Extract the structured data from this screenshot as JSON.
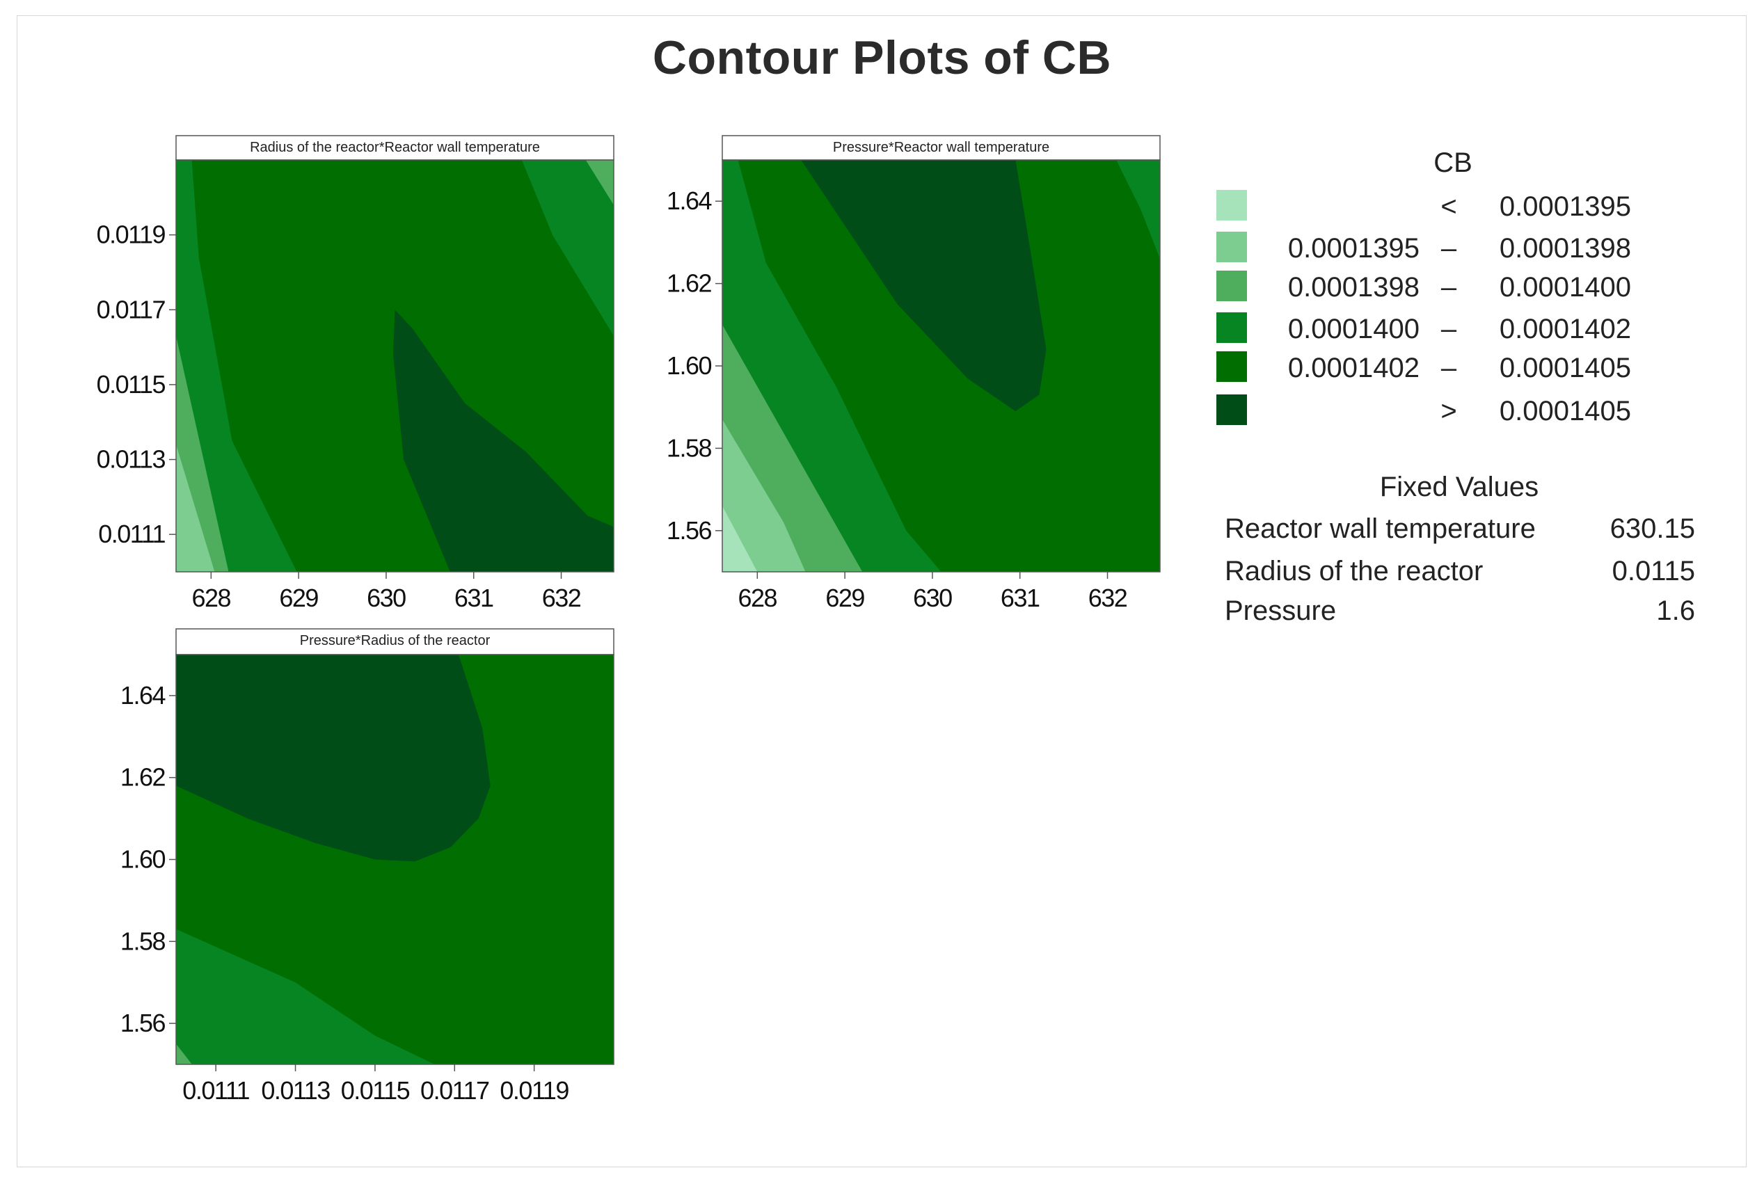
{
  "title": "Contour Plots of CB",
  "legend": {
    "title": "CB",
    "bins": [
      {
        "low": "",
        "op": "<",
        "high": "0.0001395",
        "color": "#a6e3bb"
      },
      {
        "low": "0.0001395",
        "op": "–",
        "high": "0.0001398",
        "color": "#7dcd90"
      },
      {
        "low": "0.0001398",
        "op": "–",
        "high": "0.0001400",
        "color": "#4fae5e"
      },
      {
        "low": "0.0001400",
        "op": "–",
        "high": "0.0001402",
        "color": "#078522"
      },
      {
        "low": "0.0001402",
        "op": "–",
        "high": "0.0001405",
        "color": "#006e00"
      },
      {
        "low": "",
        "op": ">",
        "high": "0.0001405",
        "color": "#004d18"
      }
    ]
  },
  "fixed_values": {
    "title": "Fixed Values",
    "rows": [
      {
        "name": "Reactor wall temperature",
        "value": "630.15"
      },
      {
        "name": "Radius of the reactor",
        "value": "0.0115"
      },
      {
        "name": "Pressure",
        "value": "1.6"
      }
    ]
  },
  "chart_data": [
    {
      "type": "heatmap",
      "title": "Radius of the reactor*Reactor wall temperature",
      "x_range": [
        627.6,
        632.6
      ],
      "y_range": [
        0.011,
        0.0121
      ],
      "x_ticks": [
        "628",
        "629",
        "630",
        "631",
        "632"
      ],
      "y_ticks": [
        "0.0111",
        "0.0113",
        "0.0115",
        "0.0117",
        "0.0119"
      ],
      "background_level": 4,
      "regions": [
        {
          "level": 3,
          "points": [
            [
              627.6,
              0.0121
            ],
            [
              627.78,
              0.0121
            ],
            [
              627.86,
              0.01184
            ],
            [
              628.24,
              0.01135
            ],
            [
              628.98,
              0.011
            ],
            [
              627.6,
              0.011
            ]
          ]
        },
        {
          "level": 2,
          "points": [
            [
              627.6,
              0.01163
            ],
            [
              628.2,
              0.011
            ],
            [
              627.6,
              0.011
            ]
          ]
        },
        {
          "level": 1,
          "points": [
            [
              627.6,
              0.01134
            ],
            [
              628.04,
              0.011
            ],
            [
              627.6,
              0.011
            ]
          ]
        },
        {
          "level": 3,
          "points": [
            [
              631.55,
              0.0121
            ],
            [
              632.6,
              0.0121
            ],
            [
              632.6,
              0.01163
            ],
            [
              631.9,
              0.0119
            ]
          ]
        },
        {
          "level": 2,
          "points": [
            [
              632.28,
              0.0121
            ],
            [
              632.6,
              0.0121
            ],
            [
              632.6,
              0.01198
            ]
          ]
        },
        {
          "level": 5,
          "points": [
            [
              630.1,
              0.0117
            ],
            [
              630.3,
              0.01165
            ],
            [
              630.9,
              0.01145
            ],
            [
              631.6,
              0.01132
            ],
            [
              632.3,
              0.01115
            ],
            [
              632.6,
              0.01112
            ],
            [
              632.6,
              0.011
            ],
            [
              630.73,
              0.011
            ],
            [
              630.2,
              0.0113
            ],
            [
              630.08,
              0.01158
            ]
          ]
        }
      ]
    },
    {
      "type": "heatmap",
      "title": "Pressure*Reactor wall temperature",
      "x_range": [
        627.6,
        632.6
      ],
      "y_range": [
        1.55,
        1.65
      ],
      "x_ticks": [
        "628",
        "629",
        "630",
        "631",
        "632"
      ],
      "y_ticks": [
        "1.56",
        "1.58",
        "1.60",
        "1.62",
        "1.64"
      ],
      "background_level": 4,
      "regions": [
        {
          "level": 3,
          "points": [
            [
              627.6,
              1.65
            ],
            [
              627.78,
              1.65
            ],
            [
              628.1,
              1.625
            ],
            [
              628.9,
              1.595
            ],
            [
              629.7,
              1.56
            ],
            [
              630.1,
              1.55
            ],
            [
              627.6,
              1.55
            ]
          ]
        },
        {
          "level": 2,
          "points": [
            [
              627.6,
              1.61
            ],
            [
              628.4,
              1.58
            ],
            [
              629.2,
              1.55
            ],
            [
              627.6,
              1.55
            ]
          ]
        },
        {
          "level": 1,
          "points": [
            [
              627.6,
              1.587
            ],
            [
              628.3,
              1.562
            ],
            [
              628.55,
              1.55
            ],
            [
              627.6,
              1.55
            ]
          ]
        },
        {
          "level": 0,
          "points": [
            [
              627.6,
              1.566
            ],
            [
              628.0,
              1.55
            ],
            [
              627.6,
              1.55
            ]
          ]
        },
        {
          "level": 3,
          "points": [
            [
              632.1,
              1.65
            ],
            [
              632.6,
              1.65
            ],
            [
              632.6,
              1.626
            ],
            [
              632.38,
              1.638
            ]
          ]
        },
        {
          "level": 5,
          "points": [
            [
              628.5,
              1.65
            ],
            [
              630.95,
              1.65
            ],
            [
              631.12,
              1.628
            ],
            [
              631.3,
              1.604
            ],
            [
              631.22,
              1.593
            ],
            [
              630.95,
              1.589
            ],
            [
              630.4,
              1.597
            ],
            [
              629.6,
              1.615
            ]
          ]
        }
      ]
    },
    {
      "type": "heatmap",
      "title": "Pressure*Radius of the reactor",
      "x_range": [
        0.011,
        0.0121
      ],
      "y_range": [
        1.55,
        1.65
      ],
      "x_ticks": [
        "0.0111",
        "0.0113",
        "0.0115",
        "0.0117",
        "0.0119"
      ],
      "y_ticks": [
        "1.56",
        "1.58",
        "1.60",
        "1.62",
        "1.64"
      ],
      "background_level": 4,
      "regions": [
        {
          "level": 3,
          "points": [
            [
              0.011,
              1.583
            ],
            [
              0.0113,
              1.57
            ],
            [
              0.0115,
              1.557
            ],
            [
              0.01165,
              1.55
            ],
            [
              0.011,
              1.55
            ]
          ]
        },
        {
          "level": 2,
          "points": [
            [
              0.011,
              1.555
            ],
            [
              0.01104,
              1.55
            ],
            [
              0.011,
              1.55
            ]
          ]
        },
        {
          "level": 5,
          "points": [
            [
              0.011,
              1.65
            ],
            [
              0.01171,
              1.65
            ],
            [
              0.01177,
              1.632
            ],
            [
              0.01179,
              1.618
            ],
            [
              0.01176,
              1.61
            ],
            [
              0.01169,
              1.603
            ],
            [
              0.0116,
              1.5995
            ],
            [
              0.0115,
              1.6
            ],
            [
              0.01135,
              1.604
            ],
            [
              0.01118,
              1.61
            ],
            [
              0.011,
              1.618
            ]
          ]
        }
      ]
    }
  ]
}
